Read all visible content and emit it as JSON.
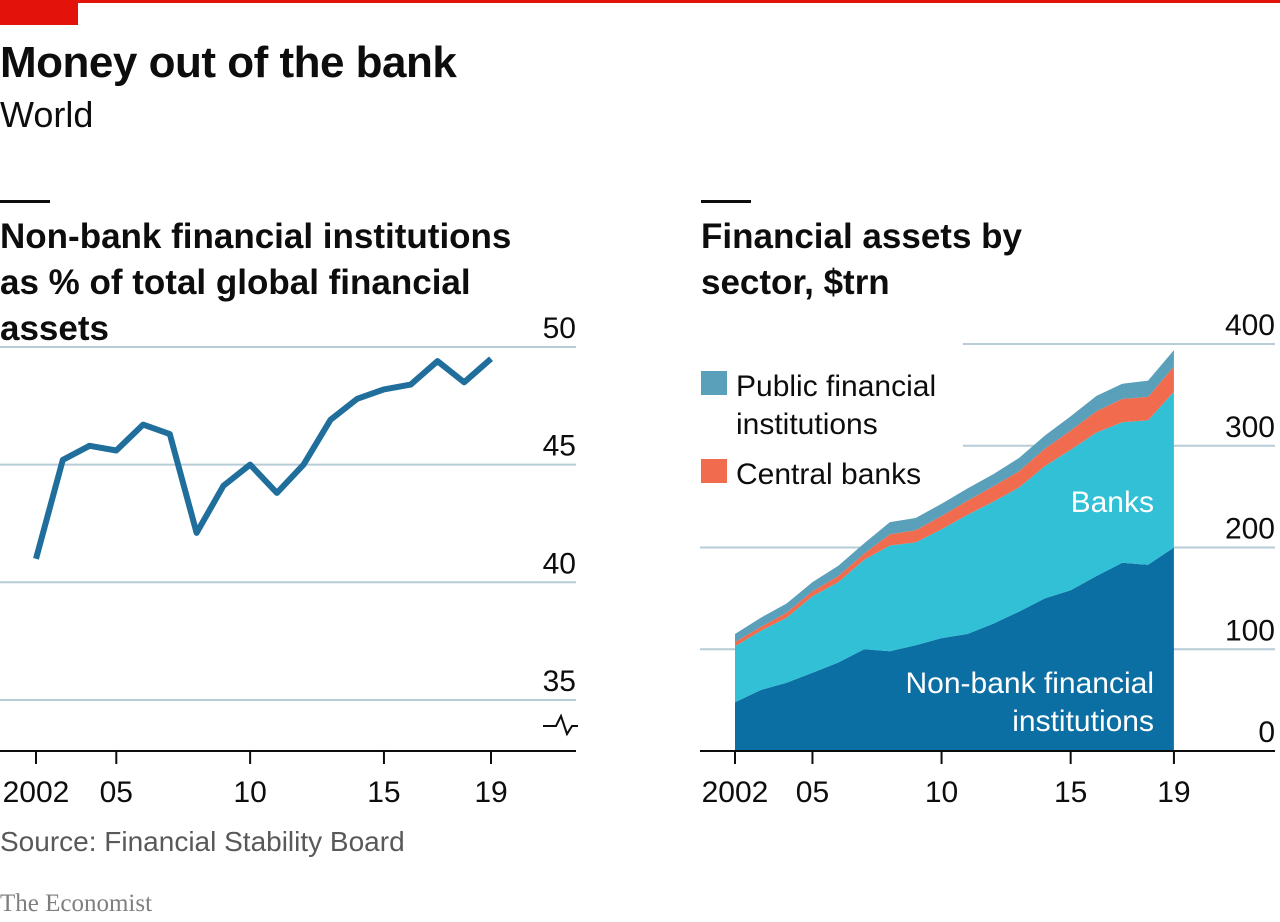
{
  "title": "Money out of the bank",
  "subtitle": "World",
  "source": "Source: Financial Stability Board",
  "brand": "The Economist",
  "colors": {
    "accent": "#e3120b",
    "line": "#1f6e9c",
    "nonbank": "#0b6fa4",
    "banks": "#31c0d6",
    "central_banks": "#f16c4e",
    "public": "#5aa0ba",
    "grid": "#b6ccd6"
  },
  "chart_data": [
    {
      "type": "line",
      "title": "Non-bank financial institutions as % of total global financial assets",
      "x_tick_labels": [
        "2002",
        "05",
        "10",
        "15",
        "19"
      ],
      "y_tick_labels": [
        "50",
        "45",
        "40",
        "35"
      ],
      "ylim": [
        35,
        50
      ],
      "y_axis_broken": true,
      "grid": true,
      "series": [
        {
          "x": [
            2002,
            2003,
            2004,
            2005,
            2006,
            2007,
            2008,
            2009,
            2010,
            2011,
            2012,
            2013,
            2014,
            2015,
            2016,
            2017,
            2018,
            2019
          ],
          "values": [
            41.0,
            45.2,
            45.8,
            45.6,
            46.7,
            46.3,
            42.1,
            44.1,
            45.0,
            43.8,
            45.0,
            46.9,
            47.8,
            48.2,
            48.4,
            49.4,
            48.5,
            49.5
          ]
        }
      ]
    },
    {
      "type": "area",
      "stacked": true,
      "title": "Financial assets by sector, $trn",
      "x_tick_labels": [
        "2002",
        "05",
        "10",
        "15",
        "19"
      ],
      "y_tick_labels": [
        "400",
        "300",
        "200",
        "100",
        "0"
      ],
      "ylim": [
        0,
        400
      ],
      "grid": true,
      "legend_position": "top-left",
      "x": [
        2002,
        2003,
        2004,
        2005,
        2006,
        2007,
        2008,
        2009,
        2010,
        2011,
        2012,
        2013,
        2014,
        2015,
        2016,
        2017,
        2018,
        2019
      ],
      "series": [
        {
          "name": "Non-bank financial institutions",
          "values": [
            48,
            60,
            67,
            77,
            87,
            100,
            98,
            104,
            111,
            115,
            125,
            137,
            150,
            158,
            172,
            185,
            183,
            200
          ]
        },
        {
          "name": "Banks",
          "values": [
            55,
            58,
            64,
            75,
            79,
            88,
            104,
            101,
            107,
            117,
            120,
            122,
            130,
            138,
            141,
            138,
            142,
            153
          ]
        },
        {
          "name": "Central banks",
          "values": [
            4,
            4,
            5,
            5,
            6,
            6,
            11,
            12,
            13,
            14,
            15,
            16,
            17,
            19,
            21,
            23,
            23,
            25
          ]
        },
        {
          "name": "Public financial institutions",
          "values": [
            8,
            9,
            9,
            9,
            10,
            10,
            12,
            12,
            12,
            12,
            12,
            13,
            13,
            14,
            15,
            15,
            16,
            16
          ]
        }
      ],
      "legend_labels": {
        "public_line1": "Public financial",
        "public_line2": "institutions",
        "central_banks": "Central banks"
      },
      "area_labels": {
        "banks": "Banks",
        "nonbank_line1": "Non-bank financial",
        "nonbank_line2": "institutions"
      }
    }
  ]
}
